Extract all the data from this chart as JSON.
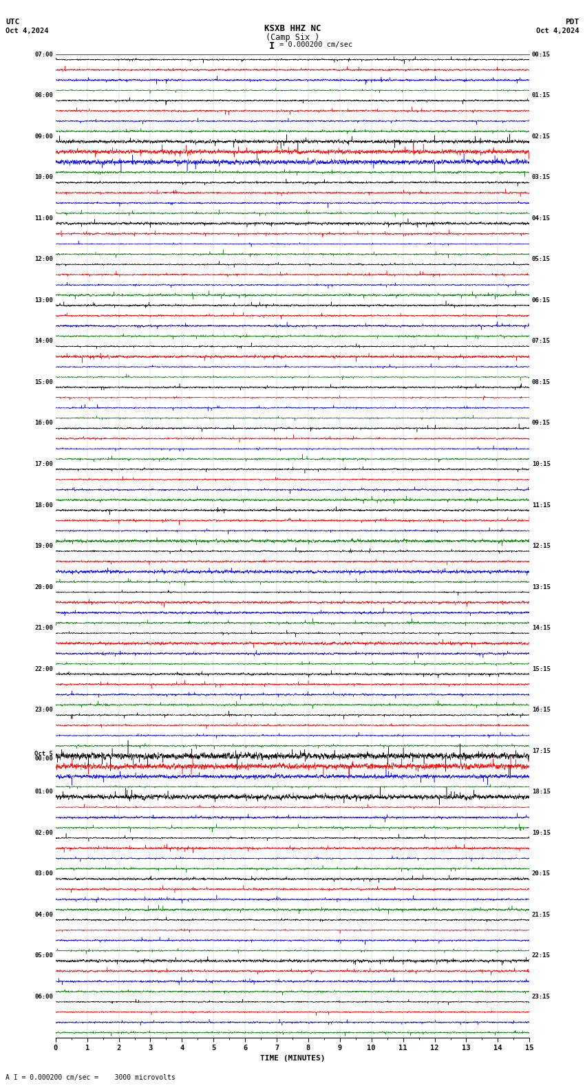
{
  "title_line1": "KSXB HHZ NC",
  "title_line2": "(Camp Six )",
  "scale_text": "= 0.000200 cm/sec",
  "scale_marker": "I",
  "utc_label": "UTC",
  "pdt_label": "PDT",
  "date_left": "Oct 4,2024",
  "date_right": "Oct 4,2024",
  "xlabel": "TIME (MINUTES)",
  "footer_text": "A I = 0.000200 cm/sec =    3000 microvolts",
  "colors": [
    "black",
    "red",
    "blue",
    "green"
  ],
  "bg_color": "white",
  "left_times": [
    "07:00",
    "08:00",
    "09:00",
    "10:00",
    "11:00",
    "12:00",
    "13:00",
    "14:00",
    "15:00",
    "16:00",
    "17:00",
    "18:00",
    "19:00",
    "20:00",
    "21:00",
    "22:00",
    "23:00",
    "Oct 5",
    "01:00",
    "02:00",
    "03:00",
    "04:00",
    "05:00",
    "06:00"
  ],
  "left_times_sub": [
    "",
    "",
    "",
    "",
    "",
    "",
    "",
    "",
    "",
    "",
    "",
    "",
    "",
    "",
    "",
    "",
    "",
    "00:00",
    "",
    "",
    "",
    "",
    "",
    ""
  ],
  "right_times": [
    "00:15",
    "01:15",
    "02:15",
    "03:15",
    "04:15",
    "05:15",
    "06:15",
    "07:15",
    "08:15",
    "09:15",
    "10:15",
    "11:15",
    "12:15",
    "13:15",
    "14:15",
    "15:15",
    "16:15",
    "17:15",
    "18:15",
    "19:15",
    "20:15",
    "21:15",
    "22:15",
    "23:15"
  ],
  "n_rows": 24,
  "n_traces_per_row": 4,
  "x_ticks": [
    0,
    1,
    2,
    3,
    4,
    5,
    6,
    7,
    8,
    9,
    10,
    11,
    12,
    13,
    14,
    15
  ],
  "figwidth": 8.5,
  "figheight": 15.84,
  "dpi": 100,
  "amplitude_scale": 0.38,
  "alpha": 0.97,
  "linewidth": 0.35,
  "n_points": 4500
}
